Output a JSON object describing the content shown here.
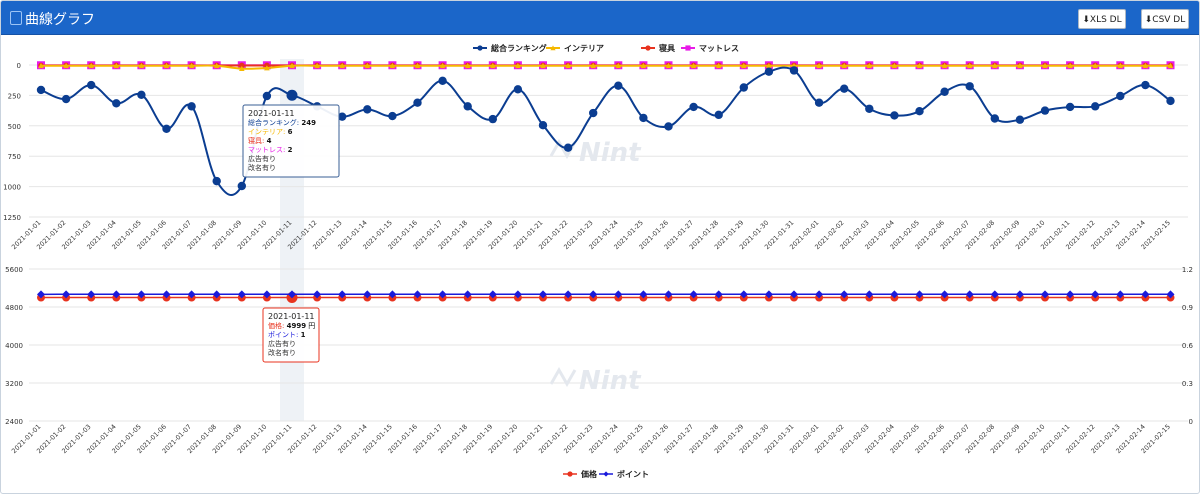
{
  "header": {
    "title": "曲線グラフ",
    "xls_label": "XLS DL",
    "csv_label": "CSV DL"
  },
  "chart_data": [
    {
      "type": "line",
      "x": [
        "2021-01-01",
        "2021-01-02",
        "2021-01-03",
        "2021-01-04",
        "2021-01-05",
        "2021-01-06",
        "2021-01-07",
        "2021-01-08",
        "2021-01-09",
        "2021-01-10",
        "2021-01-11",
        "2021-01-12",
        "2021-01-13",
        "2021-01-14",
        "2021-01-15",
        "2021-01-16",
        "2021-01-17",
        "2021-01-18",
        "2021-01-19",
        "2021-01-20",
        "2021-01-21",
        "2021-01-22",
        "2021-01-23",
        "2021-01-24",
        "2021-01-25",
        "2021-01-26",
        "2021-01-27",
        "2021-01-28",
        "2021-01-29",
        "2021-01-30",
        "2021-01-31",
        "2021-02-01",
        "2021-02-02",
        "2021-02-03",
        "2021-02-04",
        "2021-02-05",
        "2021-02-06",
        "2021-02-07",
        "2021-02-08",
        "2021-02-09",
        "2021-02-10",
        "2021-02-11",
        "2021-02-12",
        "2021-02-13",
        "2021-02-14",
        "2021-02-15"
      ],
      "ylim": [
        1250,
        0
      ],
      "yticks": [
        0,
        250,
        500,
        750,
        1000,
        1250
      ],
      "series": [
        {
          "name": "総合ランキング",
          "color": "#0b3d91",
          "marker": "circle",
          "values": [
            205,
            280,
            165,
            315,
            245,
            525,
            340,
            955,
            995,
            255,
            249,
            340,
            425,
            365,
            420,
            310,
            130,
            340,
            445,
            200,
            495,
            680,
            395,
            170,
            435,
            505,
            345,
            410,
            185,
            55,
            45,
            310,
            195,
            360,
            415,
            380,
            220,
            175,
            440,
            450,
            375,
            345,
            340,
            255,
            165,
            295
          ]
        },
        {
          "name": "インテリア",
          "color": "#f5b800",
          "marker": "triangle",
          "values": [
            6,
            6,
            6,
            6,
            6,
            6,
            6,
            6,
            30,
            25,
            6,
            6,
            6,
            6,
            6,
            6,
            6,
            6,
            6,
            6,
            6,
            6,
            6,
            6,
            6,
            6,
            6,
            6,
            6,
            6,
            6,
            6,
            6,
            6,
            6,
            6,
            6,
            6,
            6,
            6,
            6,
            6,
            6,
            6,
            6,
            6
          ]
        },
        {
          "name": "寝具",
          "color": "#e8331f",
          "marker": "circle",
          "values": [
            4,
            4,
            4,
            4,
            4,
            4,
            4,
            4,
            4,
            4,
            4,
            4,
            4,
            4,
            4,
            4,
            4,
            4,
            4,
            4,
            4,
            4,
            4,
            4,
            4,
            4,
            4,
            4,
            4,
            4,
            4,
            4,
            4,
            4,
            4,
            4,
            4,
            4,
            4,
            4,
            4,
            4,
            4,
            4,
            4,
            4
          ]
        },
        {
          "name": "マットレス",
          "color": "#e81ae8",
          "marker": "square",
          "values": [
            2,
            2,
            2,
            2,
            2,
            2,
            2,
            2,
            2,
            2,
            2,
            2,
            2,
            2,
            2,
            2,
            2,
            2,
            2,
            2,
            2,
            2,
            2,
            2,
            2,
            2,
            2,
            2,
            2,
            2,
            2,
            2,
            2,
            2,
            2,
            2,
            2,
            2,
            2,
            2,
            2,
            2,
            2,
            2,
            2,
            2
          ]
        }
      ],
      "legend": "top-center",
      "tooltip": {
        "date": "2021-01-11",
        "rows": [
          {
            "label": "総合ランキング",
            "value": "249",
            "color": "#0b3d91"
          },
          {
            "label": "インテリア",
            "value": "6",
            "color": "#f5b800"
          },
          {
            "label": "寝具",
            "value": "4",
            "color": "#e8331f"
          },
          {
            "label": "マットレス",
            "value": "2",
            "color": "#e81ae8"
          }
        ],
        "notes": [
          "広告有り",
          "改名有り"
        ]
      }
    },
    {
      "type": "line",
      "x": [
        "2021-01-01",
        "2021-01-02",
        "2021-01-03",
        "2021-01-04",
        "2021-01-05",
        "2021-01-06",
        "2021-01-07",
        "2021-01-08",
        "2021-01-09",
        "2021-01-10",
        "2021-01-11",
        "2021-01-12",
        "2021-01-13",
        "2021-01-14",
        "2021-01-15",
        "2021-01-16",
        "2021-01-17",
        "2021-01-18",
        "2021-01-19",
        "2021-01-20",
        "2021-01-21",
        "2021-01-22",
        "2021-01-23",
        "2021-01-24",
        "2021-01-25",
        "2021-01-26",
        "2021-01-27",
        "2021-01-28",
        "2021-01-29",
        "2021-01-30",
        "2021-01-31",
        "2021-02-01",
        "2021-02-02",
        "2021-02-03",
        "2021-02-04",
        "2021-02-05",
        "2021-02-06",
        "2021-02-07",
        "2021-02-08",
        "2021-02-09",
        "2021-02-10",
        "2021-02-11",
        "2021-02-12",
        "2021-02-13",
        "2021-02-14",
        "2021-02-15"
      ],
      "ylim_left": [
        2400,
        5600
      ],
      "yticks_left": [
        2400,
        3200,
        4000,
        4800,
        5600
      ],
      "ylim_right": [
        0,
        1.2
      ],
      "yticks_right": [
        "0",
        "0.3",
        "0.6",
        "0.9",
        "1.2"
      ],
      "series": [
        {
          "name": "価格",
          "axis": "left",
          "color": "#e8331f",
          "marker": "circle",
          "values": [
            4999,
            4999,
            4999,
            4999,
            4999,
            4999,
            4999,
            4999,
            4999,
            4999,
            4999,
            4999,
            4999,
            4999,
            4999,
            4999,
            4999,
            4999,
            4999,
            4999,
            4999,
            4999,
            4999,
            4999,
            4999,
            4999,
            4999,
            4999,
            4999,
            4999,
            4999,
            4999,
            4999,
            4999,
            4999,
            4999,
            4999,
            4999,
            4999,
            4999,
            4999,
            4999,
            4999,
            4999,
            4999,
            4999
          ]
        },
        {
          "name": "ポイント",
          "axis": "right",
          "color": "#1a1adb",
          "marker": "diamond",
          "values": [
            1,
            1,
            1,
            1,
            1,
            1,
            1,
            1,
            1,
            1,
            1,
            1,
            1,
            1,
            1,
            1,
            1,
            1,
            1,
            1,
            1,
            1,
            1,
            1,
            1,
            1,
            1,
            1,
            1,
            1,
            1,
            1,
            1,
            1,
            1,
            1,
            1,
            1,
            1,
            1,
            1,
            1,
            1,
            1,
            1,
            1
          ]
        }
      ],
      "legend": "bottom-center",
      "tooltip": {
        "date": "2021-01-11",
        "rows": [
          {
            "label": "価格",
            "value": "4999",
            "unit": "円",
            "color": "#e8331f"
          },
          {
            "label": "ポイント",
            "value": "1",
            "color": "#1a1adb"
          }
        ],
        "notes": [
          "広告有り",
          "改名有り"
        ]
      }
    }
  ],
  "watermark": "Nint",
  "hover_index": 10
}
